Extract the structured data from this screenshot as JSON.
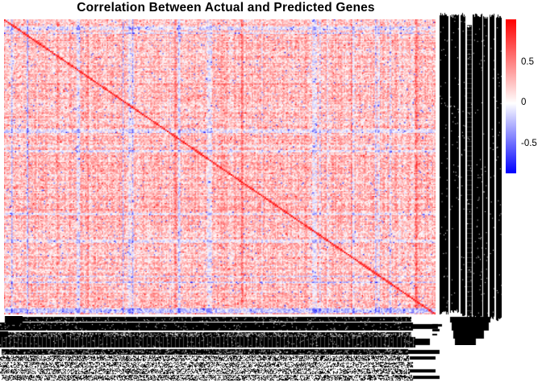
{
  "chart_data": {
    "type": "heatmap",
    "title": "Correlation Between Actual and Predicted Genes",
    "matrix_rows": 244,
    "matrix_cols": 357,
    "value_range": [
      -1,
      1
    ],
    "diagonal_value": 1,
    "pattern_summary": "Predominantly weak-to-moderate positive correlations (pink/red) with scattered negative (blue) cells, several pale or blue row and column bands, and a dark-red self-correlation diagonal running from top-left to bottom-right.",
    "row_labels_note": "Hundreds of gene-name row labels on the right edge, overplotted into an illegible solid black mass",
    "col_labels_note": "Hundreds of gene-name column labels along the bottom, overplotted into illegible solid black bars",
    "colormap": {
      "low_value": -1,
      "low_color": "#0000ff",
      "mid_value": 0,
      "mid_color": "#ffffff",
      "high_value": 1,
      "high_color": "#ff0000"
    },
    "legend": {
      "position": "right",
      "orientation": "vertical",
      "ticks": [
        "0.5",
        "0",
        "-0.5"
      ]
    },
    "grid": false
  }
}
